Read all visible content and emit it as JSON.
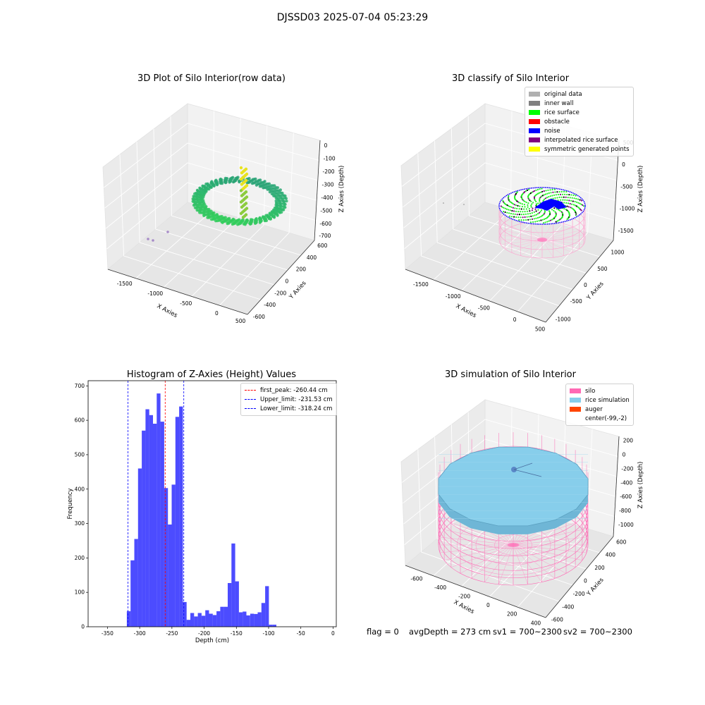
{
  "suptitle": "DJSSD03 2025-07-04 05:23:29",
  "panels": {
    "raw": {
      "title": "3D Plot of Silo Interior(row data)",
      "xlabel": "X Axies",
      "ylabel": "Y Axies",
      "zlabel": "Z Axies (Depth)",
      "xticks": [
        "-1500",
        "-1000",
        "-500",
        "0",
        "500"
      ],
      "yticks": [
        "-600",
        "-400",
        "-200",
        "0",
        "200",
        "400",
        "600"
      ],
      "zticks": [
        "0",
        "-100",
        "-200",
        "-300",
        "-400",
        "-500",
        "-600",
        "-700"
      ]
    },
    "classify": {
      "title": "3D classify of Silo Interior",
      "xlabel": "X Axies",
      "ylabel": "Y Axies",
      "zlabel": "Z Axies (Depth)",
      "xticks": [
        "-1500",
        "-1000",
        "-500",
        "0",
        "500"
      ],
      "yticks": [
        "-1000",
        "-500",
        "0",
        "500",
        "1000"
      ],
      "zticks": [
        "500",
        "0",
        "-500",
        "-1000",
        "-1500"
      ],
      "legend": [
        {
          "label": "original data",
          "color": "#b0b0b0"
        },
        {
          "label": "inner wall",
          "color": "#808080"
        },
        {
          "label": "rice surface",
          "color": "#00ff00"
        },
        {
          "label": "obstacle",
          "color": "#ff0000"
        },
        {
          "label": "noise",
          "color": "#0000ff"
        },
        {
          "label": "interpolated rice surface",
          "color": "#800080"
        },
        {
          "label": "symmetric generated points",
          "color": "#ffff00"
        }
      ]
    },
    "hist": {
      "title": "Histogram of Z-Axies (Height) Values",
      "xlabel": "Depth (cm)",
      "ylabel": "Frequency",
      "legend": [
        {
          "label": "first_peak: -260.44 cm",
          "color": "#ff0000"
        },
        {
          "label": "Upper_limit: -231.53 cm",
          "color": "#0000ff"
        },
        {
          "label": "Lower_limit: -318.24 cm",
          "color": "#0000ff"
        }
      ]
    },
    "sim": {
      "title": "3D simulation of Silo Interior",
      "xlabel": "X Axies",
      "ylabel": "Y Axies",
      "zlabel": "Z Axies (Depth)",
      "xticks": [
        "-600",
        "-400",
        "-200",
        "0",
        "200",
        "400"
      ],
      "yticks": [
        "-600",
        "-400",
        "-200",
        "0",
        "200",
        "400",
        "600"
      ],
      "zticks": [
        "200",
        "0",
        "-200",
        "-400",
        "-600",
        "-800",
        "-1000"
      ],
      "legend": [
        {
          "label": "silo",
          "color": "#ff69b4"
        },
        {
          "label": "rice simulation",
          "color": "#87ceeb"
        },
        {
          "label": "auger",
          "color": "#ff4500"
        },
        {
          "label": "center(-99,-2)",
          "color": ""
        }
      ]
    }
  },
  "footer": {
    "flag": "flag = 0",
    "avg": "avgDepth = 273 cm",
    "sv1": "sv1 = 700~2300",
    "sv2": "sv2 = 700~2300"
  },
  "chart_data": [
    {
      "type": "bar",
      "title": "Histogram of Z-Axies (Height) Values",
      "xlabel": "Depth (cm)",
      "ylabel": "Frequency",
      "xlim": [
        -380,
        5
      ],
      "ylim": [
        0,
        715
      ],
      "xticks": [
        -350,
        -300,
        -250,
        -200,
        -150,
        -100,
        -50,
        0
      ],
      "yticks": [
        0,
        100,
        200,
        300,
        400,
        500,
        600,
        700
      ],
      "bin_width": 5.8,
      "bin_starts": [
        -320.0,
        -314.2,
        -308.4,
        -302.6,
        -296.8,
        -291.0,
        -285.2,
        -279.4,
        -273.6,
        -267.8,
        -262.0,
        -256.2,
        -250.4,
        -244.6,
        -238.8,
        -233.0,
        -227.2,
        -221.4,
        -215.6,
        -209.8,
        -204.0,
        -198.2,
        -192.4,
        -186.6,
        -180.8,
        -175.0,
        -169.2,
        -163.4,
        -157.6,
        -151.8,
        -146.0,
        -140.2,
        -134.4,
        -128.6,
        -122.8,
        -117.0,
        -111.2,
        -105.4,
        -99.6,
        -93.8,
        -88.0,
        -82.2,
        -76.4,
        -70.6,
        -64.8,
        -59.0,
        -53.2,
        -47.4,
        -41.6,
        -35.8
      ],
      "values": [
        45,
        193,
        255,
        460,
        570,
        632,
        615,
        590,
        678,
        596,
        403,
        297,
        413,
        610,
        640,
        72,
        20,
        40,
        30,
        40,
        32,
        48,
        38,
        34,
        45,
        58,
        58,
        127,
        242,
        132,
        42,
        44,
        33,
        38,
        37,
        42,
        69,
        118,
        6,
        6,
        0,
        0,
        0,
        0,
        0,
        0,
        0,
        0,
        0,
        0
      ],
      "color": "#0000ff",
      "vlines": [
        {
          "x": -260.44,
          "color": "#ff0000",
          "label": "first_peak: -260.44 cm"
        },
        {
          "x": -231.53,
          "color": "#0000ff",
          "label": "Upper_limit: -231.53 cm"
        },
        {
          "x": -318.24,
          "color": "#0000ff",
          "label": "Lower_limit: -318.24 cm"
        }
      ],
      "legend_position": "top-right"
    }
  ]
}
